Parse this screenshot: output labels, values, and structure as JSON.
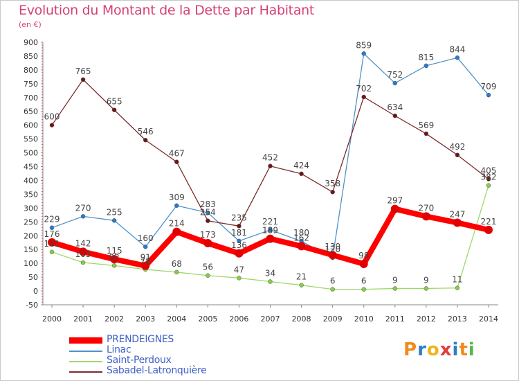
{
  "header": {
    "title": "Evolution du Montant de la Dette par Habitant",
    "unit": "(en €)"
  },
  "logo": {
    "text": "Proxiti",
    "letters": [
      {
        "ch": "P",
        "color": "#f08a1c"
      },
      {
        "ch": "r",
        "color": "#2c7fc1"
      },
      {
        "ch": "o",
        "color": "#f0b41c"
      },
      {
        "ch": "x",
        "color": "#e23d3d"
      },
      {
        "ch": "i",
        "color": "#2c7fc1"
      },
      {
        "ch": "t",
        "color": "#f08a1c"
      },
      {
        "ch": "i",
        "color": "#54b948"
      }
    ]
  },
  "chart_data": {
    "type": "line",
    "title": "Evolution du Montant de la Dette par Habitant",
    "ylabel": "(en €)",
    "xlabel": "",
    "x": [
      "2000",
      "2001",
      "2002",
      "2003",
      "2004",
      "2005",
      "2006",
      "2007",
      "2008",
      "2009",
      "2010",
      "2011",
      "2012",
      "2013",
      "2014"
    ],
    "ylim": [
      -50,
      900
    ],
    "yticks": [
      -50,
      0,
      50,
      100,
      150,
      200,
      250,
      300,
      350,
      400,
      450,
      500,
      550,
      600,
      650,
      700,
      750,
      800,
      850,
      900
    ],
    "grid": false,
    "legend_position": "bottom-left",
    "series": [
      {
        "name": "PRENDEIGNES",
        "color": "#ff0000",
        "point_color": "#e00000",
        "emphasis": true,
        "values": [
          176,
          142,
          115,
          91,
          214,
          173,
          136,
          189,
          162,
          130,
          98,
          297,
          270,
          247,
          221
        ],
        "labels": [
          "176",
          "142",
          "115",
          "91",
          "214",
          "173",
          "136",
          "189",
          "162",
          "130",
          "98",
          "297",
          "270",
          "247",
          "221"
        ]
      },
      {
        "name": "Linac",
        "color": "#4f92c8",
        "point_color": "#2a7bc8",
        "emphasis": false,
        "values": [
          229,
          270,
          255,
          160,
          309,
          283,
          181,
          221,
          180,
          120,
          859,
          752,
          815,
          844,
          709
        ],
        "labels": [
          "229",
          "270",
          "255",
          "160",
          "309",
          "283",
          "181",
          "221",
          "180",
          "120",
          "859",
          "752",
          "815",
          "844",
          "709"
        ]
      },
      {
        "name": "Saint-Perdoux",
        "color": "#9ed86a",
        "point_color": "#85cf43",
        "emphasis": false,
        "values": [
          141,
          103,
          92,
          78,
          68,
          56,
          47,
          34,
          21,
          6,
          6,
          9,
          9,
          11,
          382
        ],
        "labels": [
          "141",
          "103",
          "92",
          "78",
          "68",
          "56",
          "47",
          "34",
          "21",
          "6",
          "6",
          "9",
          "9",
          "11",
          "382"
        ]
      },
      {
        "name": "Sabadel-Latronquière",
        "color": "#7d2a2a",
        "point_color": "#6e1616",
        "emphasis": false,
        "values": [
          600,
          765,
          655,
          546,
          467,
          254,
          235,
          452,
          424,
          358,
          702,
          634,
          569,
          492,
          405
        ],
        "labels": [
          "600",
          "765",
          "655",
          "546",
          "467",
          "254",
          "235",
          "452",
          "424",
          "358",
          "702",
          "634",
          "569",
          "492",
          "405"
        ]
      }
    ]
  }
}
